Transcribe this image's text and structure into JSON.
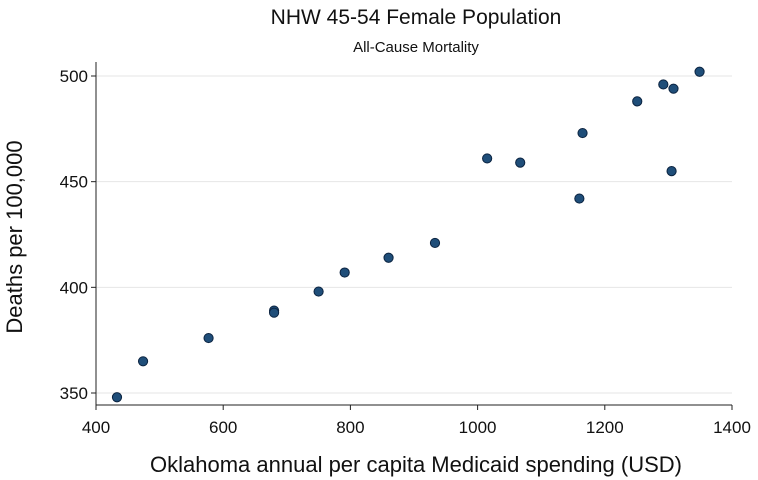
{
  "chart_data": {
    "type": "scatter",
    "title": "NHW 45-54 Female Population",
    "subtitle": "All-Cause Mortality",
    "xlabel": "Oklahoma annual per capita Medicaid spending (USD)",
    "ylabel": "Deaths per 100,000",
    "xlim": [
      400,
      1400
    ],
    "ylim": [
      350,
      500
    ],
    "xticks": [
      400,
      600,
      800,
      1000,
      1200,
      1400
    ],
    "yticks": [
      350,
      400,
      450,
      500
    ],
    "grid": true,
    "marker_color": "#1f4e79",
    "points": [
      {
        "x": 433,
        "y": 348
      },
      {
        "x": 474,
        "y": 365
      },
      {
        "x": 577,
        "y": 376
      },
      {
        "x": 680,
        "y": 389
      },
      {
        "x": 680,
        "y": 388
      },
      {
        "x": 750,
        "y": 398
      },
      {
        "x": 791,
        "y": 407
      },
      {
        "x": 860,
        "y": 414
      },
      {
        "x": 933,
        "y": 421
      },
      {
        "x": 1015,
        "y": 461
      },
      {
        "x": 1067,
        "y": 459
      },
      {
        "x": 1160,
        "y": 442
      },
      {
        "x": 1165,
        "y": 473
      },
      {
        "x": 1251,
        "y": 488
      },
      {
        "x": 1292,
        "y": 496
      },
      {
        "x": 1305,
        "y": 455
      },
      {
        "x": 1308,
        "y": 494
      },
      {
        "x": 1349,
        "y": 502
      }
    ]
  }
}
